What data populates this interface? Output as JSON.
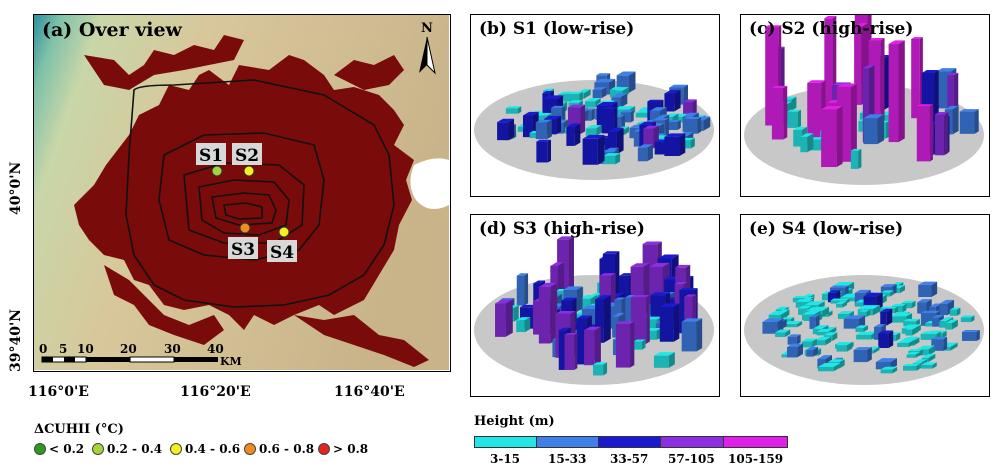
{
  "panels": {
    "a": "(a) Over view",
    "b": "(b) S1 (low-rise)",
    "c": "(c) S2 (high-rise)",
    "d": "(d) S3 (high-rise)",
    "e": "(e) S4 (low-rise)"
  },
  "north_label": "N",
  "sites": [
    "S1",
    "S2",
    "S3",
    "S4"
  ],
  "scalebar": {
    "ticks": [
      "0",
      "5",
      "10",
      "20",
      "30",
      "40"
    ],
    "unit": "KM"
  },
  "lon_labels": [
    "116°0'E",
    "116°20'E",
    "116°40'E"
  ],
  "lat_labels": [
    "40°0'N",
    "39°40'N"
  ],
  "delta_legend": {
    "title": "ΔCUHII (°C)",
    "items": [
      {
        "label": "< 0.2",
        "color": "#2e9b1e"
      },
      {
        "label": "0.2 - 0.4",
        "color": "#a6d43b"
      },
      {
        "label": "0.4 - 0.6",
        "color": "#f4f01e"
      },
      {
        "label": "0.6 - 0.8",
        "color": "#f08c1e"
      },
      {
        "label": "> 0.8",
        "color": "#e8231e"
      }
    ]
  },
  "height_legend": {
    "title": "Height (m)",
    "items": [
      {
        "label": "3-15",
        "color": "#22e6e6"
      },
      {
        "label": "15-33",
        "color": "#3f7fe8"
      },
      {
        "label": "33-57",
        "color": "#1a1ad0"
      },
      {
        "label": "57-105",
        "color": "#8a2ee0"
      },
      {
        "label": "105-159",
        "color": "#e020e8"
      }
    ]
  },
  "colors": {
    "urban": "#7a0b0b",
    "terrain": "#cdb98f",
    "ground": "#c8c8c8"
  }
}
